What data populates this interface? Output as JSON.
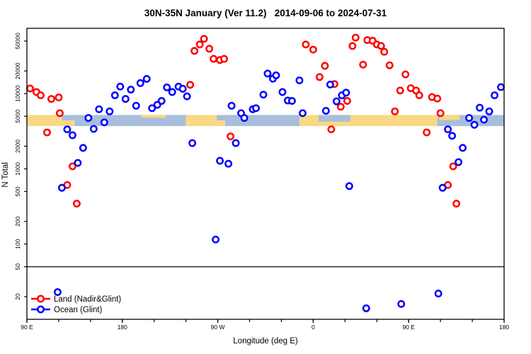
{
  "chart_data": {
    "type": "scatter",
    "title": "30N-35N January (Ver 11.2)   2014-09-06 to 2024-07-31",
    "xlabel": "Longitude (deg E)",
    "ylabel": "N Total",
    "x_axis": {
      "min": 90,
      "max": 540,
      "minor_tick_step": 30,
      "ticks": [
        {
          "pos": 90,
          "label": "90 E"
        },
        {
          "pos": 180,
          "label": "180"
        },
        {
          "pos": 270,
          "label": "90 W"
        },
        {
          "pos": 360,
          "label": "0"
        },
        {
          "pos": 450,
          "label": "90 E"
        },
        {
          "pos": 540,
          "label": "180"
        }
      ]
    },
    "y_axis": {
      "scale": "log",
      "min": 10,
      "max": 73800,
      "ticks": [
        20,
        50,
        100,
        200,
        500,
        1000,
        2000,
        5000,
        10000,
        20000,
        50000
      ]
    },
    "separator_value": 50,
    "grid": "off",
    "legend": {
      "position": "bottom-left"
    },
    "surface_band": {
      "value_low": 3700,
      "value_high": 5200,
      "segments": [
        {
          "from": 90,
          "to": 123,
          "type": "land"
        },
        {
          "from": 123,
          "to": 135,
          "type": "mixed"
        },
        {
          "from": 135,
          "to": 240,
          "type": "ocean"
        },
        {
          "from": 240,
          "to": 269,
          "type": "land"
        },
        {
          "from": 269,
          "to": 277,
          "type": "mixed"
        },
        {
          "from": 277,
          "to": 347,
          "type": "ocean"
        },
        {
          "from": 347,
          "to": 477,
          "type": "land"
        },
        {
          "from": 477,
          "to": 540,
          "type": "ocean"
        }
      ],
      "overlays": [
        {
          "from": 198,
          "to": 221,
          "type": "land",
          "depth": 0.25
        },
        {
          "from": 365,
          "to": 395,
          "type": "ocean",
          "depth": 0.6
        },
        {
          "from": 479,
          "to": 498,
          "type": "land",
          "depth": 0.45
        }
      ]
    },
    "series": [
      {
        "name": "Land (Nadir&Glint)",
        "color": "#FF0000",
        "points": [
          [
            93,
            11700
          ],
          [
            99,
            10500
          ],
          [
            103,
            9500
          ],
          [
            109,
            3050
          ],
          [
            113,
            8500
          ],
          [
            120,
            8900
          ],
          [
            121,
            5500
          ],
          [
            128,
            610
          ],
          [
            133,
            1080
          ],
          [
            137,
            345
          ],
          [
            244,
            13100
          ],
          [
            248,
            37000
          ],
          [
            253,
            45000
          ],
          [
            257,
            53500
          ],
          [
            262,
            39500
          ],
          [
            266,
            29000
          ],
          [
            272,
            28000
          ],
          [
            276,
            29000
          ],
          [
            282,
            2700
          ],
          [
            353,
            45000
          ],
          [
            360,
            38500
          ],
          [
            366,
            16600
          ],
          [
            371,
            23400
          ],
          [
            377,
            3350
          ],
          [
            380,
            13400
          ],
          [
            386,
            6700
          ],
          [
            392,
            8000
          ],
          [
            397,
            43000
          ],
          [
            400,
            55500
          ],
          [
            407,
            24300
          ],
          [
            411,
            51500
          ],
          [
            416,
            50500
          ],
          [
            420,
            45000
          ],
          [
            424,
            43000
          ],
          [
            427,
            36000
          ],
          [
            432,
            23800
          ],
          [
            437,
            5800
          ],
          [
            442,
            11000
          ],
          [
            447,
            18000
          ],
          [
            452,
            11800
          ],
          [
            457,
            11000
          ],
          [
            460,
            9500
          ],
          [
            467,
            3050
          ],
          [
            472,
            9000
          ],
          [
            477,
            8600
          ],
          [
            480,
            5500
          ],
          [
            487,
            610
          ],
          [
            492,
            1080
          ],
          [
            495,
            345
          ]
        ]
      },
      {
        "name": "Ocean (Glint)",
        "color": "#0000FF",
        "points": [
          [
            119,
            23
          ],
          [
            123,
            560
          ],
          [
            128,
            3350
          ],
          [
            133,
            2800
          ],
          [
            138,
            1200
          ],
          [
            143,
            1900
          ],
          [
            148,
            4750
          ],
          [
            153,
            3400
          ],
          [
            158,
            6200
          ],
          [
            163,
            4150
          ],
          [
            168,
            5800
          ],
          [
            173,
            9500
          ],
          [
            178,
            12400
          ],
          [
            183,
            8500
          ],
          [
            188,
            11300
          ],
          [
            193,
            6900
          ],
          [
            197,
            13800
          ],
          [
            203,
            15700
          ],
          [
            208,
            6400
          ],
          [
            213,
            7100
          ],
          [
            217,
            8000
          ],
          [
            222,
            12100
          ],
          [
            227,
            10500
          ],
          [
            233,
            12400
          ],
          [
            237,
            11600
          ],
          [
            241,
            9200
          ],
          [
            246,
            2200
          ],
          [
            268,
            115
          ],
          [
            272,
            1280
          ],
          [
            280,
            1170
          ],
          [
            283,
            6900
          ],
          [
            287,
            2200
          ],
          [
            292,
            5500
          ],
          [
            295,
            4750
          ],
          [
            303,
            6200
          ],
          [
            306,
            6400
          ],
          [
            313,
            9700
          ],
          [
            317,
            18500
          ],
          [
            322,
            15800
          ],
          [
            325,
            17500
          ],
          [
            331,
            10500
          ],
          [
            336,
            8100
          ],
          [
            340,
            8000
          ],
          [
            347,
            15000
          ],
          [
            350,
            5500
          ],
          [
            372,
            5900
          ],
          [
            376,
            13200
          ],
          [
            382,
            7900
          ],
          [
            387,
            9500
          ],
          [
            391,
            10300
          ],
          [
            394,
            590
          ],
          [
            410,
            14
          ],
          [
            443,
            16
          ],
          [
            478,
            22
          ],
          [
            482,
            560
          ],
          [
            487,
            3350
          ],
          [
            491,
            2750
          ],
          [
            497,
            1230
          ],
          [
            501,
            1900
          ],
          [
            507,
            4750
          ],
          [
            512,
            3850
          ],
          [
            517,
            6500
          ],
          [
            521,
            4500
          ],
          [
            526,
            5800
          ],
          [
            531,
            9500
          ],
          [
            537,
            12200
          ]
        ]
      }
    ]
  },
  "colors": {
    "land_point": "#FF0000",
    "ocean_point": "#0000FF",
    "land_band": "#FAD884",
    "ocean_band": "#A8BEDC",
    "frame": "#000000",
    "separator_line": "#3a3a3a"
  }
}
